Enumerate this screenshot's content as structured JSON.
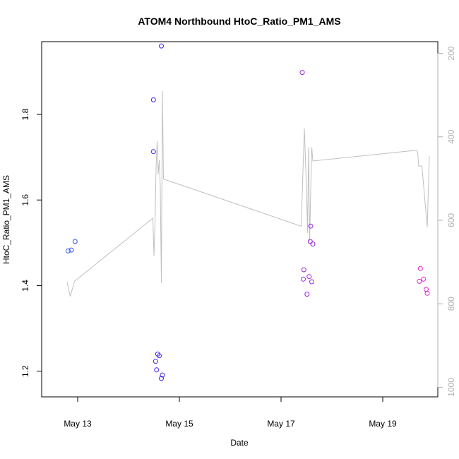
{
  "chart_data": {
    "type": "scatter",
    "title": "ATOM4 Northbound HtoC_Ratio_PM1_AMS",
    "xlabel": "Date",
    "ylabel": "HtoC_Ratio_PM1_AMS",
    "xlim": [
      "2024-05-12T07:00",
      "2024-05-20T02:00"
    ],
    "ylim": [
      1.14,
      1.97
    ],
    "y2lim": [
      1023,
      172
    ],
    "x_ticks": [
      {
        "label": "May 13",
        "value": "2024-05-13T00:00"
      },
      {
        "label": "May 15",
        "value": "2024-05-15T00:00"
      },
      {
        "label": "May 17",
        "value": "2024-05-17T00:00"
      },
      {
        "label": "May 19",
        "value": "2024-05-19T00:00"
      }
    ],
    "y_ticks": [
      {
        "label": "1.2",
        "value": 1.2
      },
      {
        "label": "1.4",
        "value": 1.4
      },
      {
        "label": "1.6",
        "value": 1.6
      },
      {
        "label": "1.8",
        "value": 1.8
      }
    ],
    "y2_ticks": [
      {
        "label": "200",
        "value": 200
      },
      {
        "label": "400",
        "value": 400
      },
      {
        "label": "600",
        "value": 600
      },
      {
        "label": "800",
        "value": 800
      },
      {
        "label": "1000",
        "value": 1000
      }
    ],
    "grid": false,
    "points": [
      {
        "x": "2024-05-12T19:30",
        "y": 1.481,
        "color": "#3355ee"
      },
      {
        "x": "2024-05-12T21:00",
        "y": 1.483,
        "color": "#3355ee"
      },
      {
        "x": "2024-05-12T22:45",
        "y": 1.503,
        "color": "#3355ee"
      },
      {
        "x": "2024-05-14T11:45",
        "y": 1.834,
        "color": "#4422ee"
      },
      {
        "x": "2024-05-14T11:45",
        "y": 1.713,
        "color": "#4422ee"
      },
      {
        "x": "2024-05-14T15:30",
        "y": 1.96,
        "color": "#4422ee"
      },
      {
        "x": "2024-05-14T13:45",
        "y": 1.24,
        "color": "#4422ee"
      },
      {
        "x": "2024-05-14T14:30",
        "y": 1.236,
        "color": "#4422ee"
      },
      {
        "x": "2024-05-14T12:45",
        "y": 1.223,
        "color": "#4422ee"
      },
      {
        "x": "2024-05-14T13:15",
        "y": 1.203,
        "color": "#4422ee"
      },
      {
        "x": "2024-05-14T16:00",
        "y": 1.191,
        "color": "#4422ee"
      },
      {
        "x": "2024-05-14T15:30",
        "y": 1.183,
        "color": "#4422ee"
      },
      {
        "x": "2024-05-17T10:00",
        "y": 1.898,
        "color": "#9922dd"
      },
      {
        "x": "2024-05-17T14:00",
        "y": 1.539,
        "color": "#9922dd"
      },
      {
        "x": "2024-05-17T13:45",
        "y": 1.503,
        "color": "#9922dd"
      },
      {
        "x": "2024-05-17T15:00",
        "y": 1.497,
        "color": "#9922dd"
      },
      {
        "x": "2024-05-17T10:45",
        "y": 1.437,
        "color": "#9922dd"
      },
      {
        "x": "2024-05-17T13:15",
        "y": 1.421,
        "color": "#9922dd"
      },
      {
        "x": "2024-05-17T10:30",
        "y": 1.415,
        "color": "#9922dd"
      },
      {
        "x": "2024-05-17T14:30",
        "y": 1.409,
        "color": "#9922dd"
      },
      {
        "x": "2024-05-17T12:15",
        "y": 1.38,
        "color": "#9922dd"
      },
      {
        "x": "2024-05-19T17:45",
        "y": 1.44,
        "color": "#dd22cc"
      },
      {
        "x": "2024-05-19T19:15",
        "y": 1.415,
        "color": "#dd22cc"
      },
      {
        "x": "2024-05-19T17:15",
        "y": 1.41,
        "color": "#dd22cc"
      },
      {
        "x": "2024-05-19T20:30",
        "y": 1.391,
        "color": "#dd22cc"
      },
      {
        "x": "2024-05-19T21:00",
        "y": 1.382,
        "color": "#dd22cc"
      }
    ],
    "line": {
      "color": "#c0c0c0",
      "axis": "right",
      "points": [
        [
          "2024-05-12T19:00",
          748
        ],
        [
          "2024-05-12T20:30",
          782
        ],
        [
          "2024-05-12T22:30",
          746
        ],
        [
          "2024-05-14T11:30",
          595
        ],
        [
          "2024-05-14T12:00",
          685
        ],
        [
          "2024-05-14T12:30",
          610
        ],
        [
          "2024-05-14T13:00",
          475
        ],
        [
          "2024-05-14T13:30",
          410
        ],
        [
          "2024-05-14T14:00",
          490
        ],
        [
          "2024-05-14T14:30",
          455
        ],
        [
          "2024-05-14T15:00",
          520
        ],
        [
          "2024-05-14T15:30",
          750
        ],
        [
          "2024-05-14T16:00",
          290
        ],
        [
          "2024-05-14T16:30",
          501
        ],
        [
          "2024-05-17T09:30",
          614
        ],
        [
          "2024-05-17T11:00",
          380
        ],
        [
          "2024-05-17T12:00",
          520
        ],
        [
          "2024-05-17T12:30",
          630
        ],
        [
          "2024-05-17T13:00",
          425
        ],
        [
          "2024-05-17T13:30",
          650
        ],
        [
          "2024-05-17T14:00",
          530
        ],
        [
          "2024-05-17T14:30",
          425
        ],
        [
          "2024-05-17T15:00",
          458
        ],
        [
          "2024-05-19T16:00",
          432
        ],
        [
          "2024-05-19T16:30",
          438
        ],
        [
          "2024-05-19T17:00",
          470
        ],
        [
          "2024-05-19T18:30",
          470
        ],
        [
          "2024-05-19T21:00",
          617
        ],
        [
          "2024-05-19T22:00",
          447
        ]
      ]
    }
  }
}
